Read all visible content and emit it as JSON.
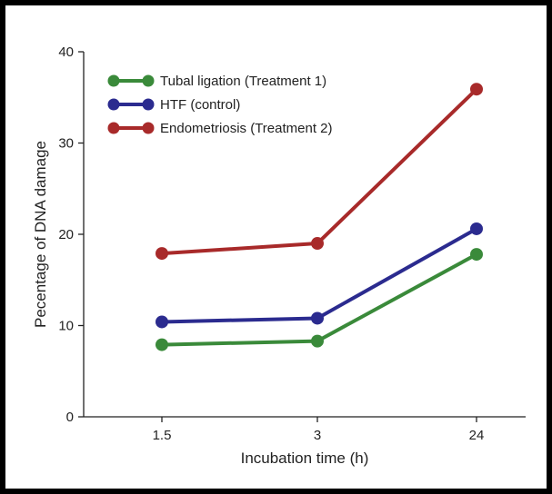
{
  "chart_data": {
    "type": "line",
    "title": "",
    "xlabel": "Incubation time (h)",
    "ylabel": "Pecentage of DNA damage",
    "categories": [
      "1.5",
      "3",
      "24"
    ],
    "ylim": [
      0,
      40
    ],
    "yticks": [
      "0",
      "10",
      "20",
      "30",
      "40"
    ],
    "grid": false,
    "legend_position": "top-left",
    "series": [
      {
        "name": "Tubal ligation (Treatment 1)",
        "color": "#3a8a3a",
        "values": [
          7.9,
          8.3,
          17.8
        ]
      },
      {
        "name": "HTF (control)",
        "color": "#2b2b8f",
        "values": [
          10.4,
          10.8,
          20.6
        ]
      },
      {
        "name": "Endometriosis (Treatment 2)",
        "color": "#a82a2a",
        "values": [
          17.9,
          19.0,
          35.9
        ]
      }
    ]
  }
}
